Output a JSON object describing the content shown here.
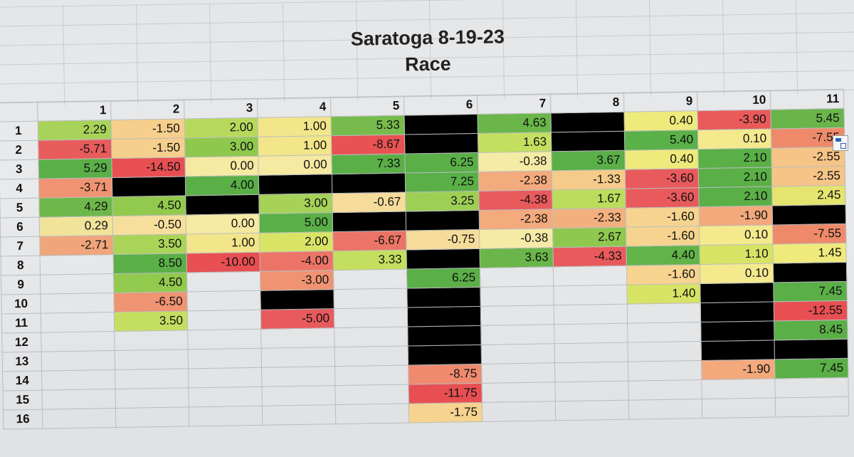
{
  "title": "Saratoga 8-19-23",
  "subtitle": "Race",
  "columns": [
    "1",
    "2",
    "3",
    "4",
    "5",
    "6",
    "7",
    "8",
    "9",
    "10",
    "11"
  ],
  "rows": [
    {
      "label": "1",
      "cells": [
        {
          "v": "2.29",
          "c": "#a8d35a"
        },
        {
          "v": "-1.50",
          "c": "#f6cf8c"
        },
        {
          "v": "2.00",
          "c": "#b7d95b"
        },
        {
          "v": "1.00",
          "c": "#f2e58a"
        },
        {
          "v": "5.33",
          "c": "#77bb4c"
        },
        {
          "v": "",
          "c": "#000000"
        },
        {
          "v": "4.63",
          "c": "#6ab64a"
        },
        {
          "v": "",
          "c": "#000000"
        },
        {
          "v": "0.40",
          "c": "#eeea7c"
        },
        {
          "v": "-3.90",
          "c": "#ea5a5a"
        },
        {
          "v": "5.45",
          "c": "#69b54a"
        }
      ]
    },
    {
      "label": "2",
      "cells": [
        {
          "v": "-5.71",
          "c": "#e85c5c"
        },
        {
          "v": "-1.50",
          "c": "#f6cf8c"
        },
        {
          "v": "3.00",
          "c": "#8ec84d"
        },
        {
          "v": "1.00",
          "c": "#f2e58a"
        },
        {
          "v": "-8.67",
          "c": "#e85252"
        },
        {
          "v": "",
          "c": "#000000"
        },
        {
          "v": "1.63",
          "c": "#c4df5f"
        },
        {
          "v": "",
          "c": "#000000"
        },
        {
          "v": "5.40",
          "c": "#5ab148"
        },
        {
          "v": "0.10",
          "c": "#f5e98e"
        },
        {
          "v": "-7.55",
          "c": "#ee8a6a"
        }
      ]
    },
    {
      "label": "3",
      "cells": [
        {
          "v": "5.29",
          "c": "#5aaf47"
        },
        {
          "v": "-14.50",
          "c": "#e84f52"
        },
        {
          "v": "0.00",
          "c": "#f6e9a2"
        },
        {
          "v": "0.00",
          "c": "#f6e9a2"
        },
        {
          "v": "7.33",
          "c": "#5aaf47"
        },
        {
          "v": "6.25",
          "c": "#5aaf47"
        },
        {
          "v": "-0.38",
          "c": "#f6eba6"
        },
        {
          "v": "3.67",
          "c": "#5aaf47"
        },
        {
          "v": "0.40",
          "c": "#eeea7c"
        },
        {
          "v": "2.10",
          "c": "#5aaf47"
        },
        {
          "v": "-2.55",
          "c": "#f5c486"
        }
      ]
    },
    {
      "label": "4",
      "cells": [
        {
          "v": "-3.71",
          "c": "#ef9372"
        },
        {
          "v": "",
          "c": "#000000"
        },
        {
          "v": "4.00",
          "c": "#5aaf47"
        },
        {
          "v": "",
          "c": "#000000"
        },
        {
          "v": "",
          "c": "#000000"
        },
        {
          "v": "7.25",
          "c": "#5aaf47"
        },
        {
          "v": "-2.38",
          "c": "#f3aa7d"
        },
        {
          "v": "-1.33",
          "c": "#f6cb8a"
        },
        {
          "v": "-3.60",
          "c": "#e85a5c"
        },
        {
          "v": "2.10",
          "c": "#5aaf47"
        },
        {
          "v": "-2.55",
          "c": "#f5c486"
        }
      ]
    },
    {
      "label": "5",
      "cells": [
        {
          "v": "4.29",
          "c": "#6eb84b"
        },
        {
          "v": "4.50",
          "c": "#92ca4e"
        },
        {
          "v": "",
          "c": "#000000"
        },
        {
          "v": "3.00",
          "c": "#a5d257"
        },
        {
          "v": "-0.67",
          "c": "#f6dc9a"
        },
        {
          "v": "3.25",
          "c": "#9ecf55"
        },
        {
          "v": "-4.38",
          "c": "#e85a5c"
        },
        {
          "v": "1.67",
          "c": "#bcdc5d"
        },
        {
          "v": "-3.60",
          "c": "#e85a5c"
        },
        {
          "v": "2.10",
          "c": "#5aaf47"
        },
        {
          "v": "2.45",
          "c": "#e4e46e"
        }
      ]
    },
    {
      "label": "6",
      "cells": [
        {
          "v": "0.29",
          "c": "#f1e39a"
        },
        {
          "v": "-0.50",
          "c": "#f6df9c"
        },
        {
          "v": "0.00",
          "c": "#f6e9a2"
        },
        {
          "v": "5.00",
          "c": "#5aaf47"
        },
        {
          "v": "",
          "c": "#000000"
        },
        {
          "v": "",
          "c": "#000000"
        },
        {
          "v": "-2.38",
          "c": "#f3aa7d"
        },
        {
          "v": "-2.33",
          "c": "#f3b07f"
        },
        {
          "v": "-1.60",
          "c": "#f6d48f"
        },
        {
          "v": "-1.90",
          "c": "#f3a97c"
        },
        {
          "v": "",
          "c": "#000000"
        }
      ]
    },
    {
      "label": "7",
      "cells": [
        {
          "v": "-2.71",
          "c": "#f0a57b"
        },
        {
          "v": "3.50",
          "c": "#aad458"
        },
        {
          "v": "1.00",
          "c": "#f2e58a"
        },
        {
          "v": "2.00",
          "c": "#d9e466"
        },
        {
          "v": "-6.67",
          "c": "#ec7466"
        },
        {
          "v": "-0.75",
          "c": "#f6dc9a"
        },
        {
          "v": "-0.38",
          "c": "#f6eba6"
        },
        {
          "v": "2.67",
          "c": "#8fc84e"
        },
        {
          "v": "-1.60",
          "c": "#f6d48f"
        },
        {
          "v": "0.10",
          "c": "#f5e98e"
        },
        {
          "v": "-7.55",
          "c": "#ee8a6a"
        }
      ]
    },
    {
      "label": "8",
      "cells": [
        {
          "v": "",
          "c": ""
        },
        {
          "v": "8.50",
          "c": "#5aaf47"
        },
        {
          "v": "-10.00",
          "c": "#e84f52"
        },
        {
          "v": "-4.00",
          "c": "#ec7466"
        },
        {
          "v": "3.33",
          "c": "#c4df5f"
        },
        {
          "v": "",
          "c": "#000000"
        },
        {
          "v": "3.63",
          "c": "#6ab64a"
        },
        {
          "v": "-4.33",
          "c": "#e85a5c"
        },
        {
          "v": "4.40",
          "c": "#62b348"
        },
        {
          "v": "1.10",
          "c": "#d7e364"
        },
        {
          "v": "1.45",
          "c": "#eeea7c"
        }
      ]
    },
    {
      "label": "9",
      "cells": [
        {
          "v": "",
          "c": ""
        },
        {
          "v": "4.50",
          "c": "#92ca4e"
        },
        {
          "v": "",
          "c": ""
        },
        {
          "v": "-3.00",
          "c": "#ef9372"
        },
        {
          "v": "",
          "c": ""
        },
        {
          "v": "6.25",
          "c": "#5aaf47"
        },
        {
          "v": "",
          "c": ""
        },
        {
          "v": "",
          "c": ""
        },
        {
          "v": "-1.60",
          "c": "#f6d48f"
        },
        {
          "v": "0.10",
          "c": "#f5e98e"
        },
        {
          "v": "",
          "c": "#000000"
        }
      ]
    },
    {
      "label": "10",
      "cells": [
        {
          "v": "",
          "c": ""
        },
        {
          "v": "-6.50",
          "c": "#ef9372"
        },
        {
          "v": "",
          "c": ""
        },
        {
          "v": "",
          "c": "#000000"
        },
        {
          "v": "",
          "c": ""
        },
        {
          "v": "",
          "c": "#000000"
        },
        {
          "v": "",
          "c": ""
        },
        {
          "v": "",
          "c": ""
        },
        {
          "v": "1.40",
          "c": "#d7e364"
        },
        {
          "v": "",
          "c": "#000000"
        },
        {
          "v": "7.45",
          "c": "#5aaf47"
        }
      ]
    },
    {
      "label": "11",
      "cells": [
        {
          "v": "",
          "c": ""
        },
        {
          "v": "3.50",
          "c": "#c4df5f"
        },
        {
          "v": "",
          "c": ""
        },
        {
          "v": "-5.00",
          "c": "#e85a5c"
        },
        {
          "v": "",
          "c": ""
        },
        {
          "v": "",
          "c": "#000000"
        },
        {
          "v": "",
          "c": ""
        },
        {
          "v": "",
          "c": ""
        },
        {
          "v": "",
          "c": ""
        },
        {
          "v": "",
          "c": "#000000"
        },
        {
          "v": "-12.55",
          "c": "#e84f52"
        }
      ]
    },
    {
      "label": "12",
      "cells": [
        {
          "v": "",
          "c": ""
        },
        {
          "v": "",
          "c": ""
        },
        {
          "v": "",
          "c": ""
        },
        {
          "v": "",
          "c": ""
        },
        {
          "v": "",
          "c": ""
        },
        {
          "v": "",
          "c": "#000000"
        },
        {
          "v": "",
          "c": ""
        },
        {
          "v": "",
          "c": ""
        },
        {
          "v": "",
          "c": ""
        },
        {
          "v": "",
          "c": "#000000"
        },
        {
          "v": "8.45",
          "c": "#5aaf47"
        }
      ]
    },
    {
      "label": "13",
      "cells": [
        {
          "v": "",
          "c": ""
        },
        {
          "v": "",
          "c": ""
        },
        {
          "v": "",
          "c": ""
        },
        {
          "v": "",
          "c": ""
        },
        {
          "v": "",
          "c": ""
        },
        {
          "v": "",
          "c": "#000000"
        },
        {
          "v": "",
          "c": ""
        },
        {
          "v": "",
          "c": ""
        },
        {
          "v": "",
          "c": ""
        },
        {
          "v": "",
          "c": "#000000"
        },
        {
          "v": "",
          "c": "#000000"
        }
      ]
    },
    {
      "label": "14",
      "cells": [
        {
          "v": "",
          "c": ""
        },
        {
          "v": "",
          "c": ""
        },
        {
          "v": "",
          "c": ""
        },
        {
          "v": "",
          "c": ""
        },
        {
          "v": "",
          "c": ""
        },
        {
          "v": "-8.75",
          "c": "#ef8a6e"
        },
        {
          "v": "",
          "c": ""
        },
        {
          "v": "",
          "c": ""
        },
        {
          "v": "",
          "c": ""
        },
        {
          "v": "-1.90",
          "c": "#f3a97c"
        },
        {
          "v": "7.45",
          "c": "#5aaf47"
        }
      ]
    },
    {
      "label": "15",
      "cells": [
        {
          "v": "",
          "c": ""
        },
        {
          "v": "",
          "c": ""
        },
        {
          "v": "",
          "c": ""
        },
        {
          "v": "",
          "c": ""
        },
        {
          "v": "",
          "c": ""
        },
        {
          "v": "-11.75",
          "c": "#e84f52"
        },
        {
          "v": "",
          "c": ""
        },
        {
          "v": "",
          "c": ""
        },
        {
          "v": "",
          "c": ""
        },
        {
          "v": "",
          "c": ""
        },
        {
          "v": "",
          "c": ""
        }
      ]
    },
    {
      "label": "16",
      "cells": [
        {
          "v": "",
          "c": ""
        },
        {
          "v": "",
          "c": ""
        },
        {
          "v": "",
          "c": ""
        },
        {
          "v": "",
          "c": ""
        },
        {
          "v": "",
          "c": ""
        },
        {
          "v": "-1.75",
          "c": "#f6d48f"
        },
        {
          "v": "",
          "c": ""
        },
        {
          "v": "",
          "c": ""
        },
        {
          "v": "",
          "c": ""
        },
        {
          "v": "",
          "c": ""
        },
        {
          "v": "",
          "c": ""
        }
      ]
    }
  ]
}
